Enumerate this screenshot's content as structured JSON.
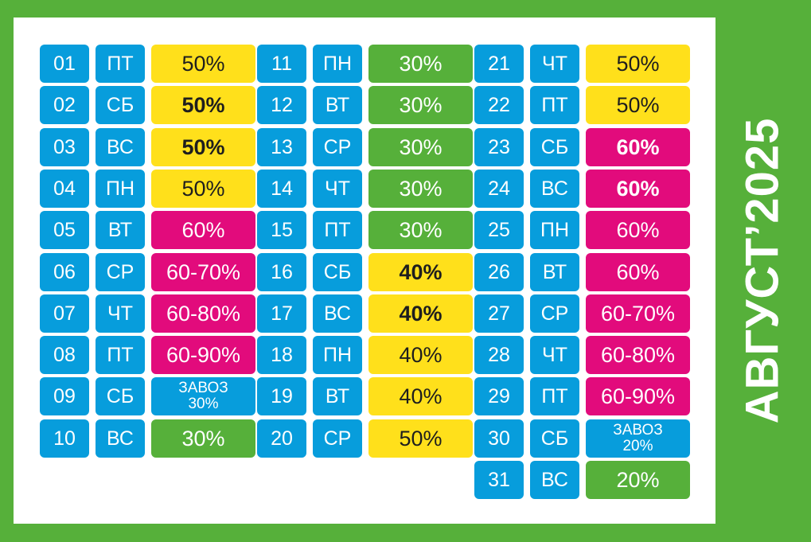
{
  "title": "АВГУСТ’2025",
  "colors": {
    "background": "#56b03a",
    "panel": "#ffffff",
    "date_cell": "#079ddc",
    "yellow": "#ffe01b",
    "magenta": "#e20b7c",
    "green": "#56b03a"
  },
  "columns": [
    [
      {
        "day": "01",
        "weekday": "ПТ",
        "discount": "50%",
        "color": "yellow",
        "bold": false
      },
      {
        "day": "02",
        "weekday": "СБ",
        "discount": "50%",
        "color": "yellow",
        "bold": true
      },
      {
        "day": "03",
        "weekday": "ВС",
        "discount": "50%",
        "color": "yellow",
        "bold": true
      },
      {
        "day": "04",
        "weekday": "ПН",
        "discount": "50%",
        "color": "yellow",
        "bold": false
      },
      {
        "day": "05",
        "weekday": "ВТ",
        "discount": "60%",
        "color": "magenta",
        "bold": false
      },
      {
        "day": "06",
        "weekday": "СР",
        "discount": "60-70%",
        "color": "magenta",
        "bold": false
      },
      {
        "day": "07",
        "weekday": "ЧТ",
        "discount": "60-80%",
        "color": "magenta",
        "bold": false
      },
      {
        "day": "08",
        "weekday": "ПТ",
        "discount": "60-90%",
        "color": "magenta",
        "bold": false
      },
      {
        "day": "09",
        "weekday": "СБ",
        "discount": "ЗАВОЗ 30%",
        "color": "blue",
        "bold": false,
        "note": "ЗАВОЗ",
        "note_value": "30%"
      },
      {
        "day": "10",
        "weekday": "ВС",
        "discount": "30%",
        "color": "green",
        "bold": false
      }
    ],
    [
      {
        "day": "11",
        "weekday": "ПН",
        "discount": "30%",
        "color": "green",
        "bold": false
      },
      {
        "day": "12",
        "weekday": "ВТ",
        "discount": "30%",
        "color": "green",
        "bold": false
      },
      {
        "day": "13",
        "weekday": "СР",
        "discount": "30%",
        "color": "green",
        "bold": false
      },
      {
        "day": "14",
        "weekday": "ЧТ",
        "discount": "30%",
        "color": "green",
        "bold": false
      },
      {
        "day": "15",
        "weekday": "ПТ",
        "discount": "30%",
        "color": "green",
        "bold": false
      },
      {
        "day": "16",
        "weekday": "СБ",
        "discount": "40%",
        "color": "yellow",
        "bold": true
      },
      {
        "day": "17",
        "weekday": "ВС",
        "discount": "40%",
        "color": "yellow",
        "bold": true
      },
      {
        "day": "18",
        "weekday": "ПН",
        "discount": "40%",
        "color": "yellow",
        "bold": false
      },
      {
        "day": "19",
        "weekday": "ВТ",
        "discount": "40%",
        "color": "yellow",
        "bold": false
      },
      {
        "day": "20",
        "weekday": "СР",
        "discount": "50%",
        "color": "yellow",
        "bold": false
      }
    ],
    [
      {
        "day": "21",
        "weekday": "ЧТ",
        "discount": "50%",
        "color": "yellow",
        "bold": false
      },
      {
        "day": "22",
        "weekday": "ПТ",
        "discount": "50%",
        "color": "yellow",
        "bold": false
      },
      {
        "day": "23",
        "weekday": "СБ",
        "discount": "60%",
        "color": "magenta",
        "bold": true
      },
      {
        "day": "24",
        "weekday": "ВС",
        "discount": "60%",
        "color": "magenta",
        "bold": true
      },
      {
        "day": "25",
        "weekday": "ПН",
        "discount": "60%",
        "color": "magenta",
        "bold": false
      },
      {
        "day": "26",
        "weekday": "ВТ",
        "discount": "60%",
        "color": "magenta",
        "bold": false
      },
      {
        "day": "27",
        "weekday": "СР",
        "discount": "60-70%",
        "color": "magenta",
        "bold": false
      },
      {
        "day": "28",
        "weekday": "ЧТ",
        "discount": "60-80%",
        "color": "magenta",
        "bold": false
      },
      {
        "day": "29",
        "weekday": "ПТ",
        "discount": "60-90%",
        "color": "magenta",
        "bold": false
      },
      {
        "day": "30",
        "weekday": "СБ",
        "discount": "ЗАВОЗ 20%",
        "color": "blue",
        "bold": false,
        "note": "ЗАВОЗ",
        "note_value": "20%"
      },
      {
        "day": "31",
        "weekday": "ВС",
        "discount": "20%",
        "color": "green",
        "bold": false
      }
    ]
  ]
}
